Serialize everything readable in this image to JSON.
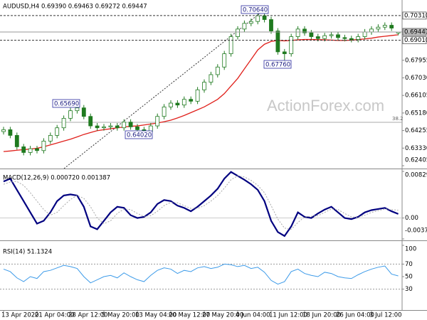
{
  "chart_data": [
    {
      "type": "candlestick",
      "title": "AUDUSD,H4 0.69390 0.69463 0.69272 0.69447",
      "watermark": "ActionForex.com",
      "color": "#1f7a1f",
      "categories": [
        "13 Apr 2020",
        null,
        null,
        null,
        null,
        "21 Apr 04:00",
        null,
        null,
        null,
        null,
        "28 Apr 12:00",
        null,
        null,
        null,
        null,
        "5 May 20:00",
        null,
        null,
        null,
        null,
        "13 May 04:00",
        null,
        null,
        null,
        null,
        "20 May 12:00",
        null,
        null,
        null,
        null,
        "27 May 20:00",
        null,
        null,
        null,
        null,
        "4 Jun 04:00",
        null,
        null,
        null,
        null,
        "11 Jun 12:00",
        null,
        null,
        null,
        null,
        "18 Jun 20:00",
        null,
        null,
        null,
        null,
        "26 Jun 04:00",
        null,
        null,
        null,
        null,
        "3 Jul 12:00",
        null,
        null,
        null,
        null
      ],
      "open": [
        0.642,
        0.643,
        0.64,
        0.634,
        0.631,
        0.633,
        0.632,
        0.637,
        0.64,
        0.644,
        0.649,
        0.653,
        0.6545,
        0.65,
        0.645,
        0.644,
        0.6445,
        0.645,
        0.644,
        0.647,
        0.6445,
        0.643,
        0.642,
        0.645,
        0.65,
        0.655,
        0.657,
        0.656,
        0.659,
        0.658,
        0.664,
        0.668,
        0.672,
        0.676,
        0.683,
        0.692,
        0.696,
        0.699,
        0.7,
        0.703,
        0.701,
        0.695,
        0.684,
        0.683,
        0.692,
        0.696,
        0.694,
        0.692,
        0.691,
        0.6925,
        0.693,
        0.6915,
        0.691,
        0.6905,
        0.692,
        0.6945,
        0.696,
        0.697,
        0.698,
        0.6939
      ],
      "high": [
        0.6445,
        0.6445,
        0.6415,
        0.6355,
        0.6345,
        0.6345,
        0.6385,
        0.6415,
        0.6455,
        0.6505,
        0.6545,
        0.6569,
        0.656,
        0.6515,
        0.6465,
        0.646,
        0.6465,
        0.6465,
        0.6485,
        0.6485,
        0.646,
        0.6445,
        0.6465,
        0.6515,
        0.6565,
        0.6585,
        0.6585,
        0.6605,
        0.6605,
        0.6655,
        0.6695,
        0.6735,
        0.6775,
        0.6845,
        0.6935,
        0.6975,
        0.7005,
        0.7015,
        0.7064,
        0.7045,
        0.7025,
        0.6965,
        0.6855,
        0.6935,
        0.6975,
        0.6975,
        0.6955,
        0.6935,
        0.694,
        0.6945,
        0.6945,
        0.693,
        0.6925,
        0.6935,
        0.696,
        0.6975,
        0.6985,
        0.6995,
        0.6995,
        0.69463
      ],
      "low": [
        0.6405,
        0.6385,
        0.6325,
        0.6295,
        0.6295,
        0.6305,
        0.6305,
        0.6355,
        0.6385,
        0.6425,
        0.6475,
        0.6515,
        0.6485,
        0.6435,
        0.6425,
        0.6425,
        0.643,
        0.6425,
        0.6425,
        0.643,
        0.6415,
        0.6402,
        0.6405,
        0.6435,
        0.6485,
        0.6535,
        0.6545,
        0.6545,
        0.6565,
        0.6565,
        0.6625,
        0.6665,
        0.6705,
        0.6745,
        0.6815,
        0.6905,
        0.6945,
        0.6975,
        0.6985,
        0.6995,
        0.6935,
        0.6825,
        0.6776,
        0.6815,
        0.6905,
        0.6925,
        0.6905,
        0.6895,
        0.6895,
        0.691,
        0.69,
        0.6895,
        0.689,
        0.689,
        0.6905,
        0.693,
        0.6945,
        0.6955,
        0.695,
        0.69272
      ],
      "close": [
        0.643,
        0.64,
        0.634,
        0.631,
        0.633,
        0.632,
        0.637,
        0.64,
        0.644,
        0.649,
        0.653,
        0.6545,
        0.65,
        0.645,
        0.644,
        0.6445,
        0.645,
        0.644,
        0.647,
        0.6445,
        0.643,
        0.642,
        0.645,
        0.65,
        0.655,
        0.657,
        0.656,
        0.659,
        0.658,
        0.664,
        0.668,
        0.672,
        0.676,
        0.683,
        0.692,
        0.696,
        0.699,
        0.7,
        0.703,
        0.701,
        0.695,
        0.684,
        0.683,
        0.692,
        0.696,
        0.694,
        0.692,
        0.691,
        0.6925,
        0.693,
        0.6915,
        0.691,
        0.6905,
        0.692,
        0.6945,
        0.696,
        0.697,
        0.698,
        0.6965,
        0.69447
      ],
      "overlays": [
        {
          "color": "#e0201b",
          "values": [
            0.6315,
            0.6318,
            0.6322,
            0.6325,
            0.6328,
            0.6332,
            0.634,
            0.635,
            0.636,
            0.637,
            0.638,
            0.6392,
            0.6405,
            0.6415,
            0.6425,
            0.643,
            0.6435,
            0.644,
            0.6444,
            0.6448,
            0.645,
            0.6455,
            0.646,
            0.6465,
            0.6472,
            0.648,
            0.6492,
            0.6505,
            0.652,
            0.6535,
            0.655,
            0.657,
            0.659,
            0.662,
            0.666,
            0.67,
            0.675,
            0.68,
            0.685,
            0.688,
            0.6895,
            0.69,
            0.6898,
            0.69,
            0.6903,
            0.6905,
            0.6905,
            0.6904,
            0.6903,
            0.6902,
            0.69,
            0.69,
            0.6902,
            0.6905,
            0.6908,
            0.6912,
            0.6918,
            0.6922,
            0.6926,
            0.693
          ]
        }
      ],
      "ylim": [
        0.62255,
        0.7113
      ],
      "yticks": [
        0.67955,
        {
          "value": 0.6703,
          "label": "0.67030"
        },
        0.66105,
        {
          "value": 0.6518,
          "label": "0.65180"
        },
        0.64255,
        {
          "value": 0.6333,
          "label": "0.63330"
        },
        0.62405
      ],
      "levels": [
        {
          "value": 0.7031,
          "label": "0.70310"
        },
        {
          "value": 0.69447,
          "label": "0.69447"
        },
        {
          "value": 0.6901,
          "label": "0.69010"
        }
      ],
      "fib": {
        "value": 0.6469,
        "label": "38.2"
      },
      "annotations": [
        "0.70640",
        "0.67760",
        "0.65690",
        "0.64020"
      ]
    },
    {
      "type": "line",
      "title": "MACD(12,26,9) 0.000720 0.001387",
      "series": [
        {
          "color": "#000080",
          "values": [
            0.0065,
            0.007,
            0.005,
            0.003,
            0.001,
            -0.001,
            -0.0005,
            0.001,
            0.003,
            0.004,
            0.0042,
            0.004,
            0.002,
            -0.0015,
            -0.002,
            -0.0005,
            0.001,
            0.002,
            0.0018,
            0.0005,
            0.0,
            0.0002,
            0.001,
            0.0025,
            0.0032,
            0.003,
            0.0022,
            0.0018,
            0.0012,
            0.002,
            0.003,
            0.004,
            0.0052,
            0.007,
            0.0082,
            0.0075,
            0.0068,
            0.006,
            0.005,
            0.003,
            -0.0005,
            -0.0025,
            -0.0032,
            -0.0015,
            0.001,
            0.0002,
            0.0,
            0.0008,
            0.0015,
            0.002,
            0.001,
            0.0,
            -0.0002,
            0.0002,
            0.001,
            0.0014,
            0.0016,
            0.0018,
            0.0012,
            0.00072
          ]
        },
        {
          "color": "#a8a8a8",
          "dashed": true,
          "values": [
            0.006,
            0.0064,
            0.0065,
            0.0058,
            0.0045,
            0.003,
            0.0015,
            0.0005,
            0.001,
            0.0022,
            0.0033,
            0.004,
            0.0035,
            0.002,
            0.0,
            -0.001,
            -0.0005,
            0.0008,
            0.0016,
            0.0015,
            0.0008,
            0.0003,
            0.0004,
            0.0012,
            0.0022,
            0.0028,
            0.0027,
            0.0022,
            0.0017,
            0.0017,
            0.0022,
            0.003,
            0.004,
            0.0053,
            0.0068,
            0.0075,
            0.0073,
            0.0067,
            0.0058,
            0.0045,
            0.0022,
            -0.0002,
            -0.0018,
            -0.002,
            -0.0008,
            0.0002,
            0.0003,
            0.0004,
            0.001,
            0.0016,
            0.0015,
            0.0008,
            0.0002,
            0.0001,
            0.0005,
            0.001,
            0.0013,
            0.0016,
            0.0015,
            0.001387
          ]
        }
      ],
      "ylim": [
        -0.003725,
        0.008295
      ],
      "yticks": [
        0.008295,
        {
          "value": 0,
          "label": "0.00"
        },
        -0.003725
      ]
    },
    {
      "type": "line",
      "title": "RSI(14) 51.1324",
      "series": [
        {
          "color": "#3d9be9",
          "values": [
            62,
            58,
            48,
            42,
            50,
            47,
            58,
            60,
            64,
            68,
            66,
            63,
            50,
            40,
            45,
            50,
            52,
            48,
            56,
            50,
            45,
            42,
            52,
            60,
            64,
            62,
            55,
            60,
            58,
            64,
            66,
            63,
            65,
            70,
            69,
            66,
            68,
            63,
            65,
            57,
            44,
            38,
            42,
            58,
            62,
            55,
            52,
            50,
            57,
            55,
            50,
            48,
            47,
            53,
            58,
            62,
            65,
            67,
            54,
            51.1324
          ]
        }
      ],
      "ylim": [
        0,
        100
      ],
      "yticks": [
        100,
        70,
        50,
        30
      ],
      "levels": [
        70,
        30
      ]
    }
  ]
}
